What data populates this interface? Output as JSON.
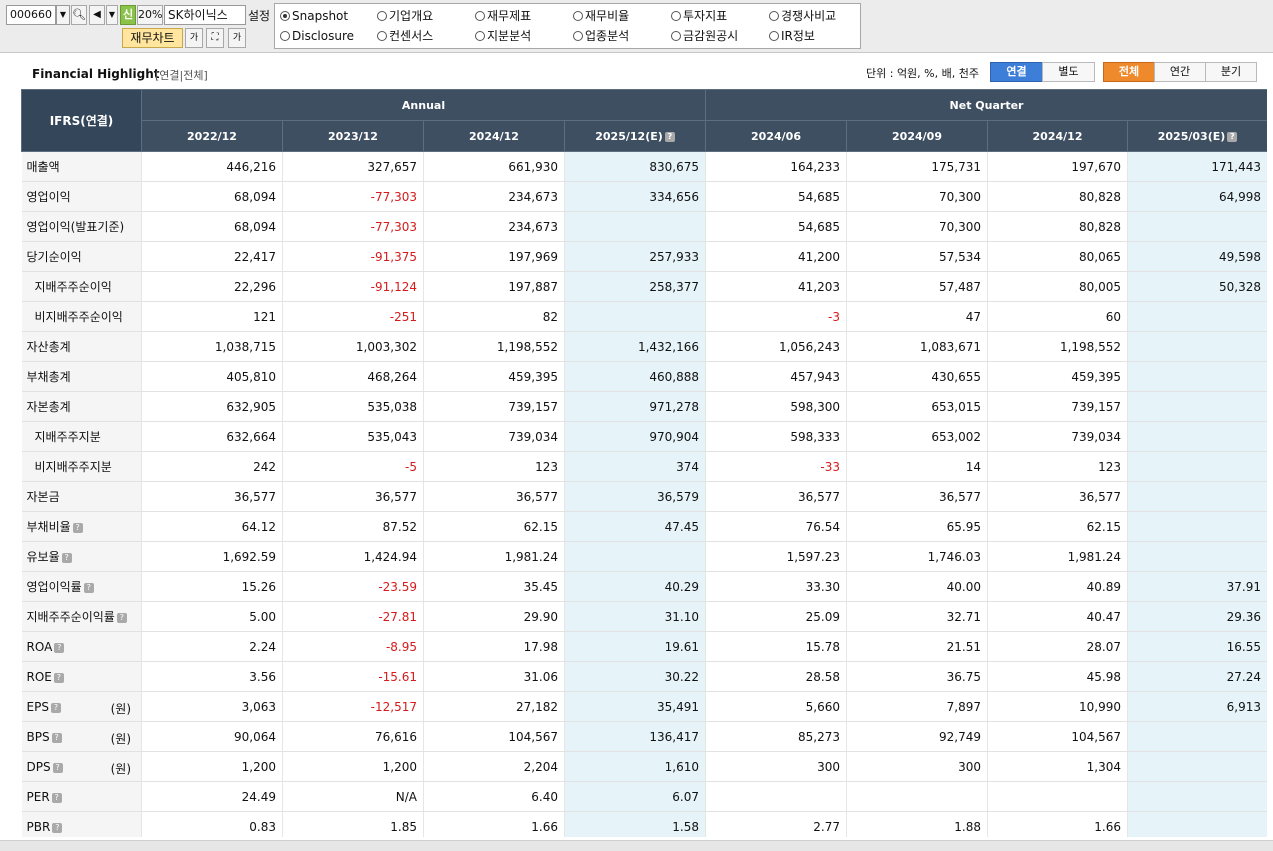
{
  "toolbar": {
    "code": "000660",
    "new_label": "신",
    "percent": "20%",
    "company": "SK하이닉스",
    "settings": "설정",
    "chart_button": "재무차트",
    "radios": [
      {
        "label": "Snapshot",
        "selected": true
      },
      {
        "label": "기업개요",
        "selected": false
      },
      {
        "label": "재무제표",
        "selected": false
      },
      {
        "label": "재무비율",
        "selected": false
      },
      {
        "label": "투자지표",
        "selected": false
      },
      {
        "label": "경쟁사비교",
        "selected": false
      },
      {
        "label": "Disclosure",
        "selected": false
      },
      {
        "label": "컨센서스",
        "selected": false
      },
      {
        "label": "지분분석",
        "selected": false
      },
      {
        "label": "업종분석",
        "selected": false
      },
      {
        "label": "금감원공시",
        "selected": false
      },
      {
        "label": "IR정보",
        "selected": false
      }
    ]
  },
  "header": {
    "title": "Financial Highlight",
    "subtitle": "[연결|전체]",
    "unit": "단위 : 억원, %, 배, 천주",
    "basis_tabs": [
      "연결",
      "별도"
    ],
    "period_tabs": [
      "전체",
      "연간",
      "분기"
    ]
  },
  "table": {
    "corner": "IFRS(연결)",
    "group_annual": "Annual",
    "group_quarter": "Net Quarter",
    "columns": [
      "2022/12",
      "2023/12",
      "2024/12",
      "2025/12(E)",
      "2024/06",
      "2024/09",
      "2024/12",
      "2025/03(E)"
    ],
    "rows": [
      {
        "label": "매출액",
        "sub": false,
        "help": false,
        "unit": "",
        "values": [
          "446,216",
          "327,657",
          "661,930",
          "830,675",
          "164,233",
          "175,731",
          "197,670",
          "171,443"
        ]
      },
      {
        "label": "영업이익",
        "sub": false,
        "help": false,
        "unit": "",
        "values": [
          "68,094",
          "-77,303",
          "234,673",
          "334,656",
          "54,685",
          "70,300",
          "80,828",
          "64,998"
        ]
      },
      {
        "label": "영업이익(발표기준)",
        "sub": false,
        "help": false,
        "unit": "",
        "values": [
          "68,094",
          "-77,303",
          "234,673",
          "",
          "54,685",
          "70,300",
          "80,828",
          ""
        ]
      },
      {
        "label": "당기순이익",
        "sub": false,
        "help": false,
        "unit": "",
        "values": [
          "22,417",
          "-91,375",
          "197,969",
          "257,933",
          "41,200",
          "57,534",
          "80,065",
          "49,598"
        ]
      },
      {
        "label": "지배주주순이익",
        "sub": true,
        "help": false,
        "unit": "",
        "values": [
          "22,296",
          "-91,124",
          "197,887",
          "258,377",
          "41,203",
          "57,487",
          "80,005",
          "50,328"
        ]
      },
      {
        "label": "비지배주주순이익",
        "sub": true,
        "help": false,
        "unit": "",
        "values": [
          "121",
          "-251",
          "82",
          "",
          "-3",
          "47",
          "60",
          ""
        ]
      },
      {
        "label": "자산총계",
        "sub": false,
        "help": false,
        "unit": "",
        "values": [
          "1,038,715",
          "1,003,302",
          "1,198,552",
          "1,432,166",
          "1,056,243",
          "1,083,671",
          "1,198,552",
          ""
        ]
      },
      {
        "label": "부채총계",
        "sub": false,
        "help": false,
        "unit": "",
        "values": [
          "405,810",
          "468,264",
          "459,395",
          "460,888",
          "457,943",
          "430,655",
          "459,395",
          ""
        ]
      },
      {
        "label": "자본총계",
        "sub": false,
        "help": false,
        "unit": "",
        "values": [
          "632,905",
          "535,038",
          "739,157",
          "971,278",
          "598,300",
          "653,015",
          "739,157",
          ""
        ]
      },
      {
        "label": "지배주주지분",
        "sub": true,
        "help": false,
        "unit": "",
        "values": [
          "632,664",
          "535,043",
          "739,034",
          "970,904",
          "598,333",
          "653,002",
          "739,034",
          ""
        ]
      },
      {
        "label": "비지배주주지분",
        "sub": true,
        "help": false,
        "unit": "",
        "values": [
          "242",
          "-5",
          "123",
          "374",
          "-33",
          "14",
          "123",
          ""
        ]
      },
      {
        "label": "자본금",
        "sub": false,
        "help": false,
        "unit": "",
        "values": [
          "36,577",
          "36,577",
          "36,577",
          "36,579",
          "36,577",
          "36,577",
          "36,577",
          ""
        ]
      },
      {
        "label": "부채비율",
        "sub": false,
        "help": true,
        "unit": "",
        "values": [
          "64.12",
          "87.52",
          "62.15",
          "47.45",
          "76.54",
          "65.95",
          "62.15",
          ""
        ]
      },
      {
        "label": "유보율",
        "sub": false,
        "help": true,
        "unit": "",
        "values": [
          "1,692.59",
          "1,424.94",
          "1,981.24",
          "",
          "1,597.23",
          "1,746.03",
          "1,981.24",
          ""
        ]
      },
      {
        "label": "영업이익률",
        "sub": false,
        "help": true,
        "unit": "",
        "values": [
          "15.26",
          "-23.59",
          "35.45",
          "40.29",
          "33.30",
          "40.00",
          "40.89",
          "37.91"
        ]
      },
      {
        "label": "지배주주순이익률",
        "sub": false,
        "help": true,
        "unit": "",
        "values": [
          "5.00",
          "-27.81",
          "29.90",
          "31.10",
          "25.09",
          "32.71",
          "40.47",
          "29.36"
        ]
      },
      {
        "label": "ROA",
        "sub": false,
        "help": true,
        "unit": "",
        "values": [
          "2.24",
          "-8.95",
          "17.98",
          "19.61",
          "15.78",
          "21.51",
          "28.07",
          "16.55"
        ]
      },
      {
        "label": "ROE",
        "sub": false,
        "help": true,
        "unit": "",
        "values": [
          "3.56",
          "-15.61",
          "31.06",
          "30.22",
          "28.58",
          "36.75",
          "45.98",
          "27.24"
        ]
      },
      {
        "label": "EPS",
        "sub": false,
        "help": true,
        "unit": "(원)",
        "values": [
          "3,063",
          "-12,517",
          "27,182",
          "35,491",
          "5,660",
          "7,897",
          "10,990",
          "6,913"
        ]
      },
      {
        "label": "BPS",
        "sub": false,
        "help": true,
        "unit": "(원)",
        "values": [
          "90,064",
          "76,616",
          "104,567",
          "136,417",
          "85,273",
          "92,749",
          "104,567",
          ""
        ]
      },
      {
        "label": "DPS",
        "sub": false,
        "help": true,
        "unit": "(원)",
        "values": [
          "1,200",
          "1,200",
          "2,204",
          "1,610",
          "300",
          "300",
          "1,304",
          ""
        ]
      },
      {
        "label": "PER",
        "sub": false,
        "help": true,
        "unit": "",
        "values": [
          "24.49",
          "N/A",
          "6.40",
          "6.07",
          "",
          "",
          "",
          ""
        ]
      },
      {
        "label": "PBR",
        "sub": false,
        "help": true,
        "unit": "",
        "values": [
          "0.83",
          "1.85",
          "1.66",
          "1.58",
          "2.77",
          "1.88",
          "1.66",
          ""
        ]
      }
    ]
  },
  "colors": {
    "header_bg": "#3e4f61",
    "negative": "#d51b1b",
    "estimate_bg": "#e6f4fa",
    "tab_blue": "#3d7ed8",
    "tab_orange": "#ee8a2c"
  }
}
